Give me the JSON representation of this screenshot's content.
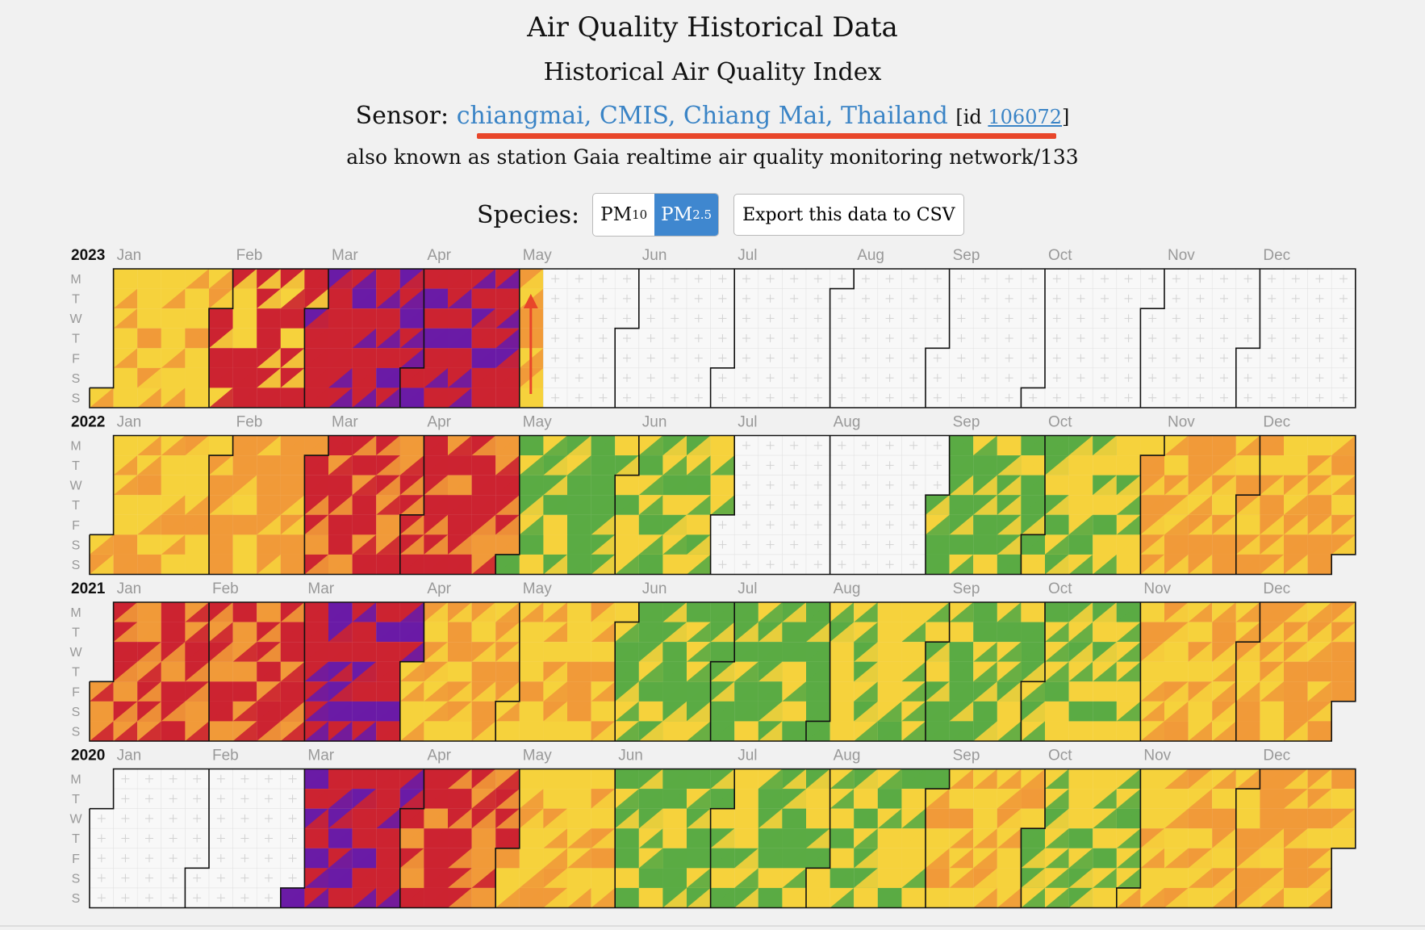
{
  "header": {
    "title": "Air Quality Historical Data",
    "subtitle": "Historical Air Quality Index",
    "sensor_label": "Sensor:",
    "sensor_name": "chiangmai, CMIS, Chiang Mai, Thailand",
    "id_prefix": "[id ",
    "id_value": "106072",
    "id_suffix": "]",
    "aka": "also known as station Gaia realtime air quality monitoring network/133"
  },
  "species": {
    "label": "Species:",
    "options": [
      {
        "base": "PM",
        "sub": "10",
        "selected": false
      },
      {
        "base": "PM",
        "sub": "2.5",
        "selected": true
      }
    ]
  },
  "export_label": "Export this data to CSV",
  "months": [
    "Jan",
    "Feb",
    "Mar",
    "Apr",
    "May",
    "Jun",
    "Jul",
    "Aug",
    "Sep",
    "Oct",
    "Nov",
    "Dec"
  ],
  "day_labels": [
    "M",
    "T",
    "W",
    "T",
    "F",
    "S",
    "S"
  ],
  "aqi_colors": {
    "good": "#5aab44",
    "moderate": "#f6d23c",
    "unhealthy_sensitive": "#f19a39",
    "unhealthy": "#cc2331",
    "very_unhealthy": "#6a1ba6",
    "hazardous": "#7a1322",
    "no_data": "#f8f8f8",
    "annotation": "#e8462a"
  },
  "years": [
    {
      "year": "2023",
      "data_end_month": 4,
      "data_end_day": 7,
      "monthly_levels": [
        [
          "moderate",
          "unhealthy_sensitive"
        ],
        [
          "unhealthy",
          "moderate"
        ],
        [
          "unhealthy",
          "very_unhealthy"
        ],
        [
          "unhealthy",
          "very_unhealthy"
        ],
        [
          "unhealthy_sensitive",
          "moderate"
        ]
      ]
    },
    {
      "year": "2022",
      "data_end_month": 11,
      "data_end_day": 31,
      "monthly_levels": [
        [
          "moderate",
          "unhealthy_sensitive"
        ],
        [
          "unhealthy_sensitive",
          "moderate"
        ],
        [
          "unhealthy",
          "unhealthy_sensitive"
        ],
        [
          "unhealthy",
          "unhealthy_sensitive"
        ],
        [
          "good",
          "moderate"
        ],
        [
          "moderate",
          "good"
        ],
        [
          null,
          null
        ],
        [
          null,
          null
        ],
        [
          "good",
          "moderate"
        ],
        [
          "moderate",
          "good"
        ],
        [
          "unhealthy_sensitive",
          "moderate"
        ],
        [
          "unhealthy_sensitive",
          "moderate"
        ]
      ]
    },
    {
      "year": "2021",
      "data_end_month": 11,
      "data_end_day": 31,
      "monthly_levels": [
        [
          "unhealthy",
          "unhealthy_sensitive"
        ],
        [
          "unhealthy",
          "unhealthy_sensitive"
        ],
        [
          "unhealthy",
          "very_unhealthy"
        ],
        [
          "unhealthy_sensitive",
          "moderate"
        ],
        [
          "moderate",
          "unhealthy_sensitive"
        ],
        [
          "good",
          "moderate"
        ],
        [
          "good",
          "moderate"
        ],
        [
          "moderate",
          "good"
        ],
        [
          "good",
          "moderate"
        ],
        [
          "moderate",
          "good"
        ],
        [
          "moderate",
          "unhealthy_sensitive"
        ],
        [
          "unhealthy_sensitive",
          "moderate"
        ]
      ]
    },
    {
      "year": "2020",
      "data_end_month": 11,
      "data_end_day": 31,
      "monthly_levels": [
        [
          null,
          null
        ],
        [
          null,
          null
        ],
        [
          "unhealthy",
          "very_unhealthy"
        ],
        [
          "unhealthy",
          "unhealthy_sensitive"
        ],
        [
          "moderate",
          "unhealthy_sensitive"
        ],
        [
          "good",
          "moderate"
        ],
        [
          "good",
          "moderate"
        ],
        [
          "moderate",
          "good"
        ],
        [
          "moderate",
          "unhealthy_sensitive"
        ],
        [
          "moderate",
          "good"
        ],
        [
          "moderate",
          "unhealthy_sensitive"
        ],
        [
          "unhealthy_sensitive",
          "moderate"
        ]
      ]
    }
  ]
}
